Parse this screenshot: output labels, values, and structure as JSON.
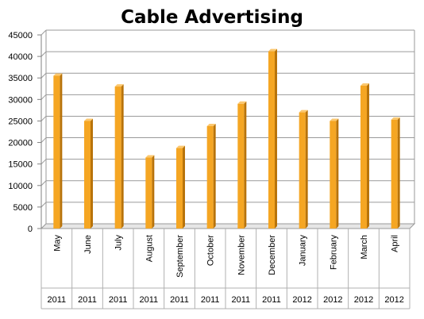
{
  "chart_data": {
    "type": "bar",
    "title": "Cable Advertising",
    "xlabel": "",
    "ylabel": "",
    "ylim": [
      0,
      45000
    ],
    "yticks": [
      0,
      5000,
      10000,
      15000,
      20000,
      25000,
      30000,
      35000,
      40000,
      45000
    ],
    "grid": true,
    "legend": "none",
    "categories": [
      "May",
      "June",
      "July",
      "August",
      "September",
      "October",
      "November",
      "December",
      "January",
      "February",
      "March",
      "April"
    ],
    "years": [
      "2011",
      "2011",
      "2011",
      "2011",
      "2011",
      "2011",
      "2011",
      "2011",
      "2012",
      "2012",
      "2012",
      "2012"
    ],
    "values": [
      35500,
      25000,
      33000,
      16500,
      18700,
      23800,
      29000,
      41200,
      27000,
      25000,
      33200,
      25300
    ],
    "bar_color": "#F5A623",
    "bar_side_color": "#B8730A",
    "bar_top_color": "#FBC870"
  }
}
